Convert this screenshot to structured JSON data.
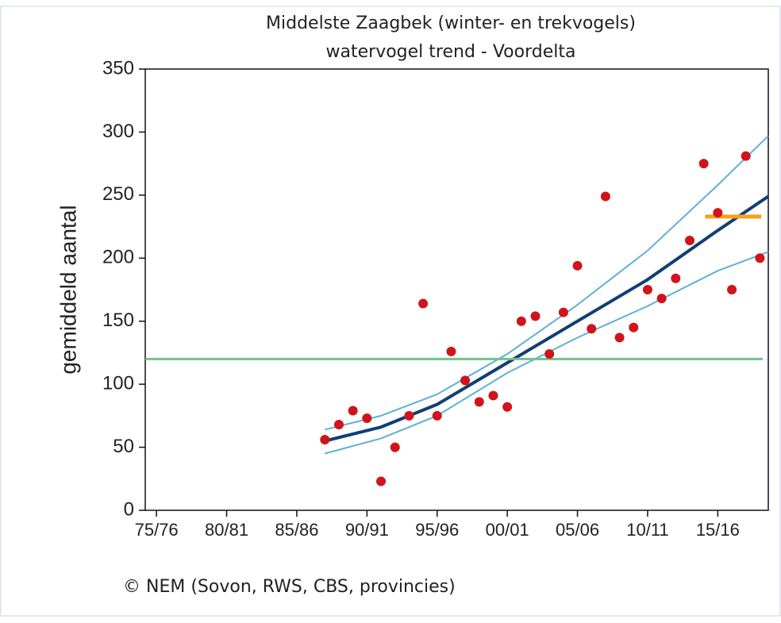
{
  "chart_data": {
    "type": "scatter",
    "title": "Middelste Zaagbek (winter- en trekvogels)",
    "subtitle": "watervogel trend - Voordelta",
    "ylabel": "gemiddeld aantal",
    "source": "© NEM (Sovon, RWS, CBS, provincies)",
    "xlim": [
      1974.2,
      2018.6
    ],
    "ylim": [
      0,
      350
    ],
    "xticks": [
      {
        "value": 1975,
        "label": "75/76"
      },
      {
        "value": 1980,
        "label": "80/81"
      },
      {
        "value": 1985,
        "label": "85/86"
      },
      {
        "value": 1990,
        "label": "90/91"
      },
      {
        "value": 1995,
        "label": "95/96"
      },
      {
        "value": 2000,
        "label": "00/01"
      },
      {
        "value": 2005,
        "label": "05/06"
      },
      {
        "value": 2010,
        "label": "10/11"
      },
      {
        "value": 2015,
        "label": "15/16"
      }
    ],
    "yticks": [
      0,
      50,
      100,
      150,
      200,
      250,
      300,
      350
    ],
    "series": [
      {
        "type": "scatter",
        "color": "#d0141b",
        "x": [
          1987,
          1988,
          1989,
          1990,
          1991,
          1992,
          1993,
          1994,
          1995,
          1996,
          1997,
          1998,
          1999,
          2000,
          2001,
          2002,
          2003,
          2004,
          2005,
          2006,
          2007,
          2008,
          2009,
          2010,
          2011,
          2012,
          2013,
          2014,
          2015,
          2016,
          2017,
          2018
        ],
        "values": [
          56,
          68,
          79,
          73,
          23,
          50,
          75,
          164,
          75,
          126,
          103,
          86,
          91,
          82,
          150,
          154,
          124,
          157,
          194,
          144,
          249,
          137,
          145,
          175,
          168,
          184,
          214,
          275,
          236,
          175,
          281,
          200
        ]
      },
      {
        "type": "line",
        "color": "#5fb0d8",
        "width": 2,
        "x": [
          1987,
          1991,
          1995,
          2000,
          2005,
          2010,
          2015,
          2018.6
        ],
        "values": [
          64,
          75,
          92,
          124,
          163,
          206,
          258,
          297
        ]
      },
      {
        "type": "line",
        "color": "#5fb0d8",
        "width": 2,
        "x": [
          1987,
          1991,
          1995,
          2000,
          2005,
          2010,
          2015,
          2018.6
        ],
        "values": [
          45,
          57,
          75,
          109,
          137,
          162,
          190,
          205
        ]
      },
      {
        "type": "line",
        "color": "#103f73",
        "width": 4,
        "x": [
          1987,
          1991,
          1995,
          2000,
          2005,
          2010,
          2015,
          2018.6
        ],
        "values": [
          55,
          66,
          84,
          117,
          150,
          183,
          222,
          249
        ]
      },
      {
        "type": "line",
        "color": "#74c08f",
        "width": 3,
        "x": [
          1974.2,
          2018.2
        ],
        "values": [
          120,
          120
        ]
      },
      {
        "type": "line",
        "color": "#f5a01a",
        "width": 5,
        "x": [
          2014.1,
          2018.1
        ],
        "values": [
          233,
          233
        ]
      }
    ]
  }
}
